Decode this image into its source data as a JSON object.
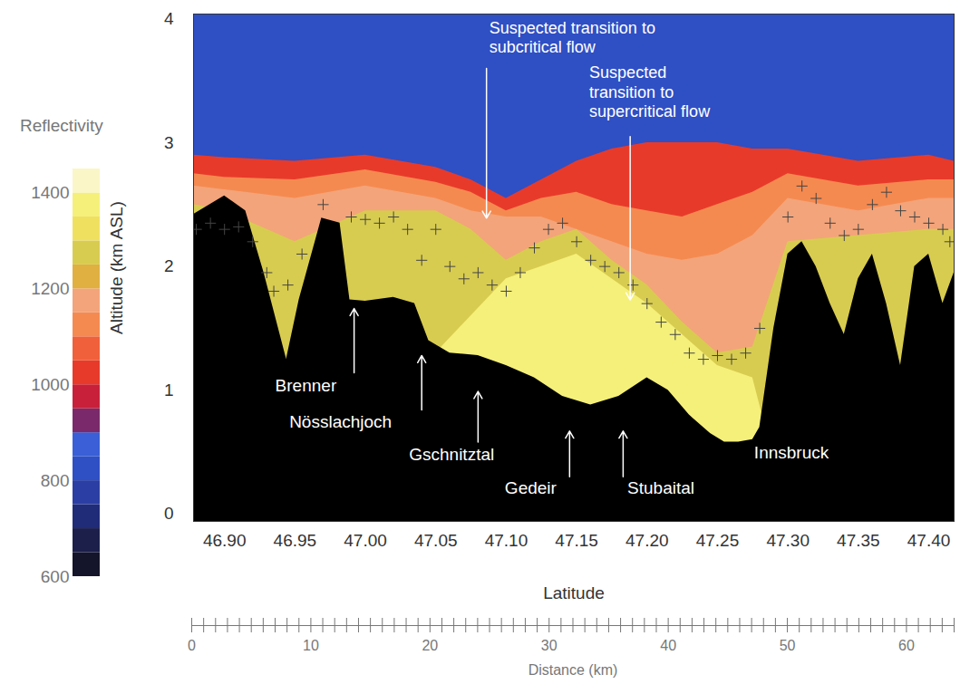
{
  "chart_data": {
    "type": "cross_section",
    "xlabel": "Latitude",
    "ylabel": "Altitude (km ASL)",
    "xlim": [
      46.878,
      47.418
    ],
    "xticks": [
      {
        "value": 46.9,
        "label": "46.90"
      },
      {
        "value": 46.95,
        "label": "46.95"
      },
      {
        "value": 47.0,
        "label": "47.00"
      },
      {
        "value": 47.05,
        "label": "47.05"
      },
      {
        "value": 47.1,
        "label": "47.10"
      },
      {
        "value": 47.15,
        "label": "47.15"
      },
      {
        "value": 47.2,
        "label": "47.20"
      },
      {
        "value": 47.25,
        "label": "47.25"
      },
      {
        "value": 47.3,
        "label": "47.30"
      },
      {
        "value": 47.35,
        "label": "47.35"
      },
      {
        "value": 47.4,
        "label": "47.40"
      }
    ],
    "ylim": [
      -0.06,
      4.04
    ],
    "yticks": [
      0,
      1,
      2,
      3,
      4
    ],
    "grid": false,
    "colorbar": {
      "label": "Reflectivity",
      "bins": [
        600,
        650,
        700,
        750,
        800,
        850,
        900,
        950,
        1000,
        1050,
        1100,
        1150,
        1200,
        1250,
        1300,
        1350,
        1400,
        1450
      ],
      "colors": [
        "#14142a",
        "#1c1f4a",
        "#202c78",
        "#2b3ea3",
        "#2f4fc4",
        "#3a5fd6",
        "#7a2a6a",
        "#c8203a",
        "#e83a2a",
        "#f0603a",
        "#f58a50",
        "#f3a47a",
        "#e0b040",
        "#d8cc50",
        "#f0e060",
        "#f5f07a",
        "#faf6c8"
      ],
      "ticks": [
        600,
        800,
        1000,
        1200,
        1400
      ]
    },
    "layers": {
      "x": [
        46.878,
        46.9,
        46.95,
        47.0,
        47.05,
        47.075,
        47.1,
        47.125,
        47.15,
        47.175,
        47.2,
        47.225,
        47.25,
        47.275,
        47.3,
        47.35,
        47.4,
        47.418
      ],
      "series": [
        {
          "reflectivity": 800,
          "color": "#2f4fc4",
          "top": [
            4.04,
            4.04,
            4.04,
            4.04,
            4.04,
            4.04,
            4.04,
            4.04,
            4.04,
            4.04,
            4.04,
            4.04,
            4.04,
            4.04,
            4.04,
            4.04,
            4.04,
            4.04
          ]
        },
        {
          "reflectivity": 1000,
          "color": "#e83a2a",
          "top": [
            2.9,
            2.88,
            2.85,
            2.9,
            2.8,
            2.7,
            2.55,
            2.7,
            2.85,
            2.95,
            3.0,
            3.0,
            3.0,
            2.95,
            2.95,
            2.85,
            2.9,
            2.85
          ]
        },
        {
          "reflectivity": 1100,
          "color": "#f58a50",
          "top": [
            2.75,
            2.72,
            2.7,
            2.78,
            2.68,
            2.6,
            2.45,
            2.55,
            2.6,
            2.5,
            2.45,
            2.4,
            2.5,
            2.6,
            2.75,
            2.65,
            2.7,
            2.7
          ]
        },
        {
          "reflectivity": 1150,
          "color": "#f3a47a",
          "top": [
            2.65,
            2.62,
            2.55,
            2.65,
            2.55,
            2.45,
            2.4,
            2.4,
            2.3,
            2.2,
            2.1,
            2.05,
            2.1,
            2.25,
            2.55,
            2.45,
            2.55,
            2.55
          ]
        },
        {
          "reflectivity": 1250,
          "color": "#d8cc50",
          "top": [
            2.5,
            2.45,
            2.2,
            2.45,
            2.45,
            2.3,
            2.05,
            2.2,
            2.3,
            2.05,
            1.85,
            1.55,
            1.3,
            1.35,
            2.2,
            2.25,
            2.3,
            2.3
          ]
        },
        {
          "reflectivity": 1350,
          "color": "#f5f07a",
          "top": [
            0,
            0,
            0,
            0,
            1.3,
            1.6,
            1.9,
            2.0,
            2.1,
            1.9,
            1.7,
            1.45,
            1.2,
            1.1,
            0,
            0,
            0,
            0
          ]
        }
      ]
    },
    "terrain": {
      "color": "#000000",
      "x": [
        46.878,
        46.9,
        46.915,
        46.928,
        46.944,
        46.953,
        46.969,
        46.982,
        46.989,
        47.0,
        47.02,
        47.035,
        47.045,
        47.06,
        47.08,
        47.1,
        47.12,
        47.14,
        47.16,
        47.18,
        47.2,
        47.215,
        47.23,
        47.245,
        47.255,
        47.265,
        47.275,
        47.28,
        47.29,
        47.3,
        47.31,
        47.32,
        47.33,
        47.34,
        47.35,
        47.36,
        47.37,
        47.38,
        47.39,
        47.4,
        47.41,
        47.418
      ],
      "altitude": [
        2.42,
        2.57,
        2.45,
        1.95,
        1.25,
        1.73,
        2.39,
        2.35,
        1.73,
        1.72,
        1.75,
        1.7,
        1.4,
        1.3,
        1.28,
        1.2,
        1.1,
        0.95,
        0.88,
        0.95,
        1.1,
        1.0,
        0.8,
        0.65,
        0.58,
        0.58,
        0.6,
        0.7,
        1.5,
        2.1,
        2.2,
        2.0,
        1.7,
        1.45,
        1.9,
        2.1,
        1.7,
        1.2,
        2.0,
        2.1,
        1.7,
        1.95
      ]
    },
    "crosses": {
      "marker": "plus",
      "color": "#444444",
      "x": [
        46.88,
        46.89,
        46.9,
        46.91,
        46.92,
        46.93,
        46.935,
        46.945,
        46.955,
        46.97,
        46.99,
        47.0,
        47.01,
        47.02,
        47.03,
        47.04,
        47.05,
        47.06,
        47.07,
        47.08,
        47.09,
        47.1,
        47.11,
        47.12,
        47.13,
        47.14,
        47.15,
        47.16,
        47.17,
        47.18,
        47.19,
        47.2,
        47.21,
        47.22,
        47.23,
        47.24,
        47.25,
        47.26,
        47.27,
        47.28,
        47.3,
        47.31,
        47.32,
        47.33,
        47.34,
        47.35,
        47.36,
        47.37,
        47.38,
        47.39,
        47.4,
        47.41,
        47.415
      ],
      "y": [
        2.3,
        2.35,
        2.3,
        2.32,
        2.2,
        1.95,
        1.8,
        1.85,
        2.1,
        2.5,
        2.4,
        2.38,
        2.35,
        2.4,
        2.3,
        2.05,
        2.3,
        2.0,
        1.9,
        1.95,
        1.85,
        1.8,
        1.95,
        2.15,
        2.3,
        2.35,
        2.2,
        2.05,
        2.0,
        1.95,
        1.85,
        1.7,
        1.55,
        1.45,
        1.3,
        1.25,
        1.28,
        1.25,
        1.3,
        1.5,
        2.4,
        2.65,
        2.55,
        2.35,
        2.25,
        2.3,
        2.5,
        2.6,
        2.45,
        2.4,
        2.35,
        2.3,
        2.2
      ]
    },
    "annotations": [
      {
        "text": "Suspected transition to\nsubcritical flow",
        "x": 47.088,
        "y": 3.99,
        "arrow_x": 47.086,
        "arrow_y1": 3.6,
        "arrow_y2": 2.39
      },
      {
        "text": "Suspected\ntransition to\nsupercritical flow",
        "x": 47.159,
        "y": 3.63,
        "arrow_x": 47.188,
        "arrow_y1": 3.05,
        "arrow_y2": 1.73
      },
      {
        "text": "Brenner",
        "x": 46.936,
        "y": 1.09,
        "arrow_x": 46.992,
        "arrow_y1": 1.14,
        "arrow_y2": 1.66
      },
      {
        "text": "Nösslachjoch",
        "x": 46.946,
        "y": 0.8,
        "arrow_x": 47.04,
        "arrow_y1": 0.84,
        "arrow_y2": 1.28
      },
      {
        "text": "Gschnitztal",
        "x": 47.031,
        "y": 0.53,
        "arrow_x": 47.08,
        "arrow_y1": 0.58,
        "arrow_y2": 0.99
      },
      {
        "text": "Gedeir",
        "x": 47.099,
        "y": 0.26,
        "arrow_x": 47.145,
        "arrow_y1": 0.3,
        "arrow_y2": 0.67
      },
      {
        "text": "Stubaital",
        "x": 47.186,
        "y": 0.26,
        "arrow_x": 47.183,
        "arrow_y1": 0.3,
        "arrow_y2": 0.67
      },
      {
        "text": "Innsbruck",
        "x": 47.276,
        "y": 0.55
      }
    ],
    "distance_axis": {
      "label": "Distance (km)",
      "lim": [
        0,
        64
      ],
      "ticks": [
        0,
        10,
        20,
        30,
        40,
        50,
        60
      ],
      "minor_ticks": [
        0,
        1,
        2,
        3,
        4,
        5,
        6,
        7,
        8,
        9,
        10,
        11,
        12,
        13,
        14,
        15,
        16,
        17,
        18,
        19,
        20,
        21,
        22,
        23,
        24,
        25,
        26,
        27,
        28,
        29,
        30,
        31,
        32,
        33,
        34,
        35,
        36,
        37,
        38,
        39,
        40,
        41,
        42,
        43,
        44,
        45,
        46,
        47,
        48,
        49,
        50,
        51,
        52,
        53,
        54,
        55,
        56,
        57,
        58,
        59,
        60,
        61,
        62,
        63,
        64
      ]
    }
  }
}
